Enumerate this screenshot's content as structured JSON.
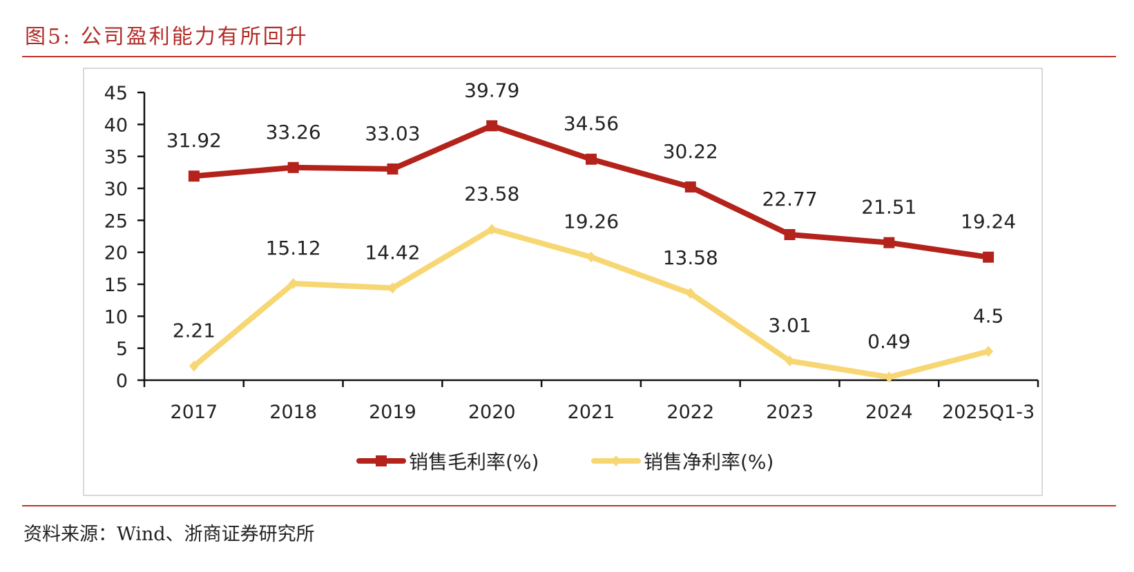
{
  "figure": {
    "title": "图5:  公司盈利能力有所回升",
    "source": "资料来源：Wind、浙商证券研究所"
  },
  "colors": {
    "accent_rule": "#c0322c",
    "title_text": "#b22a26",
    "series_gross": "#b3221b",
    "series_net": "#f7d774",
    "axis": "#111111",
    "frame_border": "#d9d9d9"
  },
  "chart_data": {
    "type": "line",
    "title": "公司盈利能力有所回升",
    "xlabel": "",
    "ylabel": "",
    "categories": [
      "2017",
      "2018",
      "2019",
      "2020",
      "2021",
      "2022",
      "2023",
      "2024",
      "2025Q1-3"
    ],
    "ylim": [
      0,
      45
    ],
    "yticks": [
      0,
      5,
      10,
      15,
      20,
      25,
      30,
      35,
      40,
      45
    ],
    "ytick_labels": [
      "0",
      "5",
      "10",
      "15",
      "20",
      "25",
      "30",
      "35",
      "40",
      "45"
    ],
    "grid": false,
    "legend_position": "bottom",
    "series": [
      {
        "name": "销售毛利率(%)",
        "marker": "square",
        "color": "#b3221b",
        "values": [
          31.92,
          33.26,
          33.03,
          39.79,
          34.56,
          30.22,
          22.77,
          21.51,
          19.24
        ],
        "labels": [
          "31.92",
          "33.26",
          "33.03",
          "39.79",
          "34.56",
          "30.22",
          "22.77",
          "21.51",
          "19.24"
        ]
      },
      {
        "name": "销售净利率(%)",
        "marker": "diamond",
        "color": "#f7d774",
        "values": [
          2.21,
          15.12,
          14.42,
          23.58,
          19.26,
          13.58,
          3.01,
          0.49,
          4.5
        ],
        "labels": [
          "2.21",
          "15.12",
          "14.42",
          "23.58",
          "19.26",
          "13.58",
          "3.01",
          "0.49",
          "4.5"
        ]
      }
    ]
  }
}
